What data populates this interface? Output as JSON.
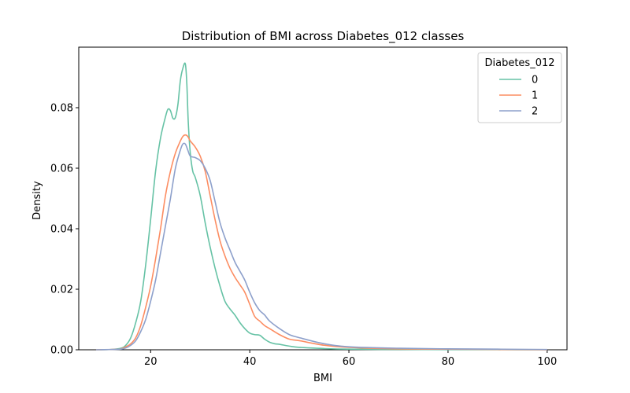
{
  "chart_data": {
    "type": "line",
    "title": "Distribution of BMI across Diabetes_012 classes",
    "xlabel": "BMI",
    "ylabel": "Density",
    "xlim": [
      5.5,
      104
    ],
    "ylim": [
      0,
      0.1
    ],
    "xticks": [
      20,
      40,
      60,
      80,
      100
    ],
    "yticks": [
      0.0,
      0.02,
      0.04,
      0.06,
      0.08
    ],
    "xtick_labels": [
      "20",
      "40",
      "60",
      "80",
      "100"
    ],
    "ytick_labels": [
      "0.00",
      "0.02",
      "0.04",
      "0.06",
      "0.08"
    ],
    "grid": false,
    "legend": {
      "title": "Diabetes_012",
      "placement": "top-right"
    },
    "series": [
      {
        "name": "0",
        "color": "#66c2a5",
        "x": [
          9,
          12,
          14,
          15,
          16,
          17,
          18,
          19,
          20,
          21,
          22,
          23,
          23.5,
          24,
          24.5,
          25,
          25.5,
          26,
          26.5,
          27,
          27.3,
          27.6,
          28,
          28.5,
          29,
          30,
          31,
          32,
          33,
          34,
          35,
          36,
          37,
          38,
          39,
          40,
          41,
          42,
          43,
          44,
          45,
          46,
          48,
          50,
          55,
          60,
          70,
          80,
          90,
          100
        ],
        "y": [
          0,
          0.0001,
          0.0005,
          0.0015,
          0.004,
          0.009,
          0.016,
          0.028,
          0.043,
          0.059,
          0.07,
          0.077,
          0.0795,
          0.079,
          0.0765,
          0.0768,
          0.081,
          0.089,
          0.093,
          0.0945,
          0.088,
          0.075,
          0.065,
          0.059,
          0.057,
          0.051,
          0.042,
          0.034,
          0.027,
          0.021,
          0.016,
          0.0135,
          0.0115,
          0.009,
          0.007,
          0.0055,
          0.005,
          0.0048,
          0.0035,
          0.0025,
          0.002,
          0.0018,
          0.0012,
          0.0008,
          0.0004,
          0.0002,
          0.0001,
          5e-05,
          3e-05,
          0
        ]
      },
      {
        "name": "1",
        "color": "#fc8d62",
        "x": [
          9,
          12,
          14,
          15,
          16,
          17,
          18,
          19,
          20,
          21,
          22,
          23,
          24,
          25,
          26,
          26.5,
          27,
          27.5,
          28,
          29,
          30,
          31,
          32,
          33,
          34,
          35,
          36,
          37,
          38,
          39,
          40,
          41,
          42,
          43,
          44,
          46,
          48,
          50,
          55,
          60,
          70,
          80,
          90,
          100
        ],
        "y": [
          0,
          0.0001,
          0.0003,
          0.001,
          0.002,
          0.004,
          0.008,
          0.014,
          0.021,
          0.03,
          0.04,
          0.051,
          0.059,
          0.065,
          0.069,
          0.0705,
          0.071,
          0.0705,
          0.069,
          0.067,
          0.064,
          0.059,
          0.051,
          0.043,
          0.036,
          0.031,
          0.027,
          0.024,
          0.0215,
          0.019,
          0.015,
          0.011,
          0.0095,
          0.008,
          0.007,
          0.005,
          0.0035,
          0.003,
          0.0015,
          0.0008,
          0.0003,
          0.0002,
          0.0001,
          0
        ]
      },
      {
        "name": "2",
        "color": "#8da0cb",
        "x": [
          9,
          12,
          14,
          15,
          16,
          17,
          18,
          19,
          20,
          21,
          22,
          23,
          24,
          25,
          26,
          26.5,
          27,
          27.5,
          28,
          29,
          30,
          31,
          32,
          33,
          34,
          35,
          36,
          37,
          38,
          39,
          40,
          41,
          42,
          43,
          44,
          46,
          48,
          50,
          55,
          60,
          70,
          80,
          90,
          100
        ],
        "y": [
          0,
          0.0001,
          0.0002,
          0.0006,
          0.0015,
          0.003,
          0.006,
          0.01,
          0.016,
          0.023,
          0.032,
          0.041,
          0.05,
          0.06,
          0.066,
          0.068,
          0.068,
          0.066,
          0.064,
          0.0635,
          0.0625,
          0.06,
          0.056,
          0.049,
          0.042,
          0.037,
          0.033,
          0.029,
          0.026,
          0.023,
          0.019,
          0.0155,
          0.013,
          0.0115,
          0.0095,
          0.007,
          0.005,
          0.004,
          0.002,
          0.001,
          0.0005,
          0.0003,
          0.0002,
          0.0001
        ]
      }
    ]
  }
}
